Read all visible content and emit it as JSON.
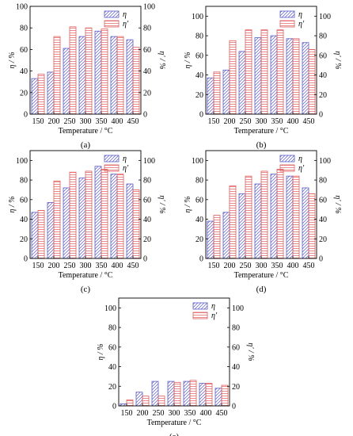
{
  "figure": {
    "panels": [
      {
        "caption": "(a)"
      },
      {
        "caption": "(b)"
      },
      {
        "caption": "(c)"
      },
      {
        "caption": "(d)"
      },
      {
        "caption": "(e)"
      }
    ]
  },
  "colors": {
    "eta": "#5a5ac8",
    "eta_prime": "#e05a5a",
    "axis": "#000000"
  },
  "chart_data": [
    {
      "type": "bar",
      "caption": "(a)",
      "categories": [
        "150",
        "200",
        "250",
        "300",
        "350",
        "400",
        "450"
      ],
      "xlabel": "Temperature / °C",
      "ylabel_left": "η / %",
      "ylabel_right": "η' / %",
      "ylim": [
        0,
        100
      ],
      "yticks_left": [
        0,
        20,
        40,
        60,
        80,
        100
      ],
      "yticks_right": [
        0,
        20,
        40,
        60,
        80,
        100
      ],
      "legend": "top-right",
      "series": [
        {
          "name": "η",
          "values": [
            33,
            39,
            61,
            72,
            77,
            72,
            69
          ]
        },
        {
          "name": "η'",
          "values": [
            37,
            72,
            81,
            80,
            79,
            72,
            62
          ]
        }
      ]
    },
    {
      "type": "bar",
      "caption": "(b)",
      "categories": [
        "150",
        "200",
        "250",
        "300",
        "350",
        "400",
        "450"
      ],
      "xlabel": "Temperature / °C",
      "ylabel_left": "η / %",
      "ylabel_right": "η' / %",
      "ylim": [
        0,
        110
      ],
      "yticks_left": [
        0,
        20,
        40,
        60,
        80,
        100
      ],
      "yticks_right": [
        0,
        20,
        40,
        60,
        80,
        100
      ],
      "legend": "top-right",
      "series": [
        {
          "name": "η",
          "values": [
            37,
            45,
            64,
            78,
            80,
            77,
            73
          ]
        },
        {
          "name": "η'",
          "values": [
            43,
            75,
            86,
            86,
            86,
            77,
            66
          ]
        }
      ]
    },
    {
      "type": "bar",
      "caption": "(c)",
      "categories": [
        "150",
        "200",
        "250",
        "300",
        "350",
        "400",
        "450"
      ],
      "xlabel": "Temperature / °C",
      "ylabel_left": "η / %",
      "ylabel_right": "η' / %",
      "ylim": [
        0,
        110
      ],
      "yticks_left": [
        0,
        20,
        40,
        60,
        80,
        100
      ],
      "yticks_right": [
        0,
        20,
        40,
        60,
        80,
        100
      ],
      "legend": "top-right",
      "series": [
        {
          "name": "η",
          "values": [
            47,
            57,
            72,
            82,
            94,
            86,
            76
          ]
        },
        {
          "name": "η'",
          "values": [
            49,
            79,
            88,
            89,
            91,
            86,
            70
          ]
        }
      ]
    },
    {
      "type": "bar",
      "caption": "(d)",
      "categories": [
        "150",
        "200",
        "250",
        "300",
        "350",
        "400",
        "450"
      ],
      "xlabel": "Temperature / °C",
      "ylabel_left": "η / %",
      "ylabel_right": "η' / %",
      "ylim": [
        0,
        110
      ],
      "yticks_left": [
        0,
        20,
        40,
        60,
        80,
        100
      ],
      "yticks_right": [
        0,
        20,
        40,
        60,
        80,
        100
      ],
      "legend": "top-right",
      "series": [
        {
          "name": "η",
          "values": [
            38,
            47,
            66,
            76,
            86,
            84,
            72
          ]
        },
        {
          "name": "η'",
          "values": [
            44,
            74,
            84,
            89,
            91,
            84,
            66
          ]
        }
      ]
    },
    {
      "type": "bar",
      "caption": "(e)",
      "categories": [
        "150",
        "200",
        "250",
        "300",
        "350",
        "400",
        "450"
      ],
      "xlabel": "Temperature / °C",
      "ylabel_left": "η / %",
      "ylabel_right": "η' / %",
      "ylim": [
        0,
        110
      ],
      "yticks_left": [
        0,
        20,
        40,
        60,
        80,
        100
      ],
      "yticks_right": [
        0,
        20,
        40,
        60,
        80,
        100
      ],
      "legend": "top-right",
      "series": [
        {
          "name": "η",
          "values": [
            2,
            14,
            25,
            25,
            25,
            23,
            18
          ]
        },
        {
          "name": "η'",
          "values": [
            6,
            10,
            10,
            24,
            26,
            23,
            21
          ]
        }
      ]
    }
  ]
}
